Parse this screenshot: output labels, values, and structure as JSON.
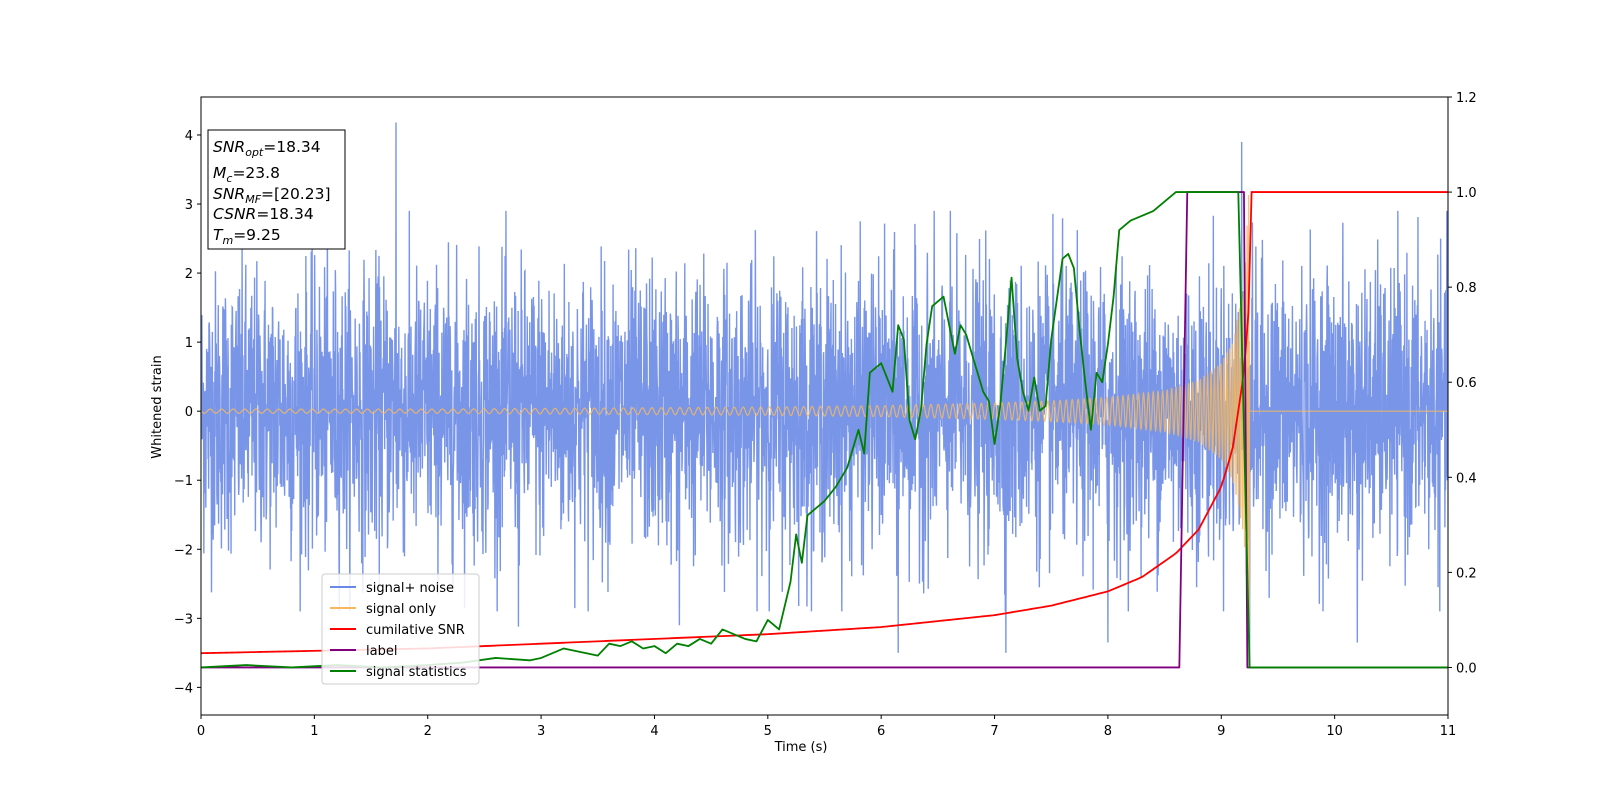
{
  "chart_data": {
    "type": "line",
    "xlabel": "Time (s)",
    "ylabel": "Whitened strain",
    "xlim": [
      0,
      11
    ],
    "ylim_left": [
      -4.4,
      4.55
    ],
    "ylim_right": [
      -0.1,
      1.2
    ],
    "x_ticks": [
      "0",
      "1",
      "2",
      "3",
      "4",
      "5",
      "6",
      "7",
      "8",
      "9",
      "10",
      "11"
    ],
    "y_left_ticks": [
      "4",
      "3",
      "2",
      "1",
      "0",
      "−1",
      "−2",
      "−3",
      "−4"
    ],
    "y_right_ticks": [
      "1.2",
      "1.0",
      "0.8",
      "0.6",
      "0.4",
      "0.2",
      "0.0"
    ],
    "annotation": [
      {
        "base": "SNR",
        "sub": "opt",
        "rest": "=18.34"
      },
      {
        "base": "M",
        "sub": "c",
        "rest": "=23.8"
      },
      {
        "base": "SNR",
        "sub": "MF",
        "rest": "=[20.23]"
      },
      {
        "base": "CSNR",
        "sub": "",
        "rest": "=18.34"
      },
      {
        "base": "T",
        "sub": "m",
        "rest": "=9.25"
      }
    ],
    "legend_position": "lower-left",
    "series": [
      {
        "name": "signal+ noise",
        "axis": "left",
        "color": "#6a89e6",
        "description_values": {
          "std": 1.0,
          "peaks": [
            [
              1.72,
              4.18
            ],
            [
              9.18,
              3.9
            ],
            [
              9.25,
              -3.7
            ],
            [
              6.15,
              -3.5
            ],
            [
              7.1,
              -3.5
            ],
            [
              10.2,
              -3.35
            ],
            [
              8.0,
              -3.35
            ],
            [
              4.22,
              -3.1
            ],
            [
              2.8,
              -3.12
            ]
          ]
        }
      },
      {
        "name": "signal only",
        "axis": "left",
        "color": "#f5b860",
        "x": [
          0,
          2,
          4,
          5,
          6,
          7,
          7.5,
          8,
          8.5,
          8.8,
          9.0,
          9.1,
          9.2,
          9.25,
          9.26,
          11
        ],
        "envelope": [
          0.03,
          0.03,
          0.05,
          0.06,
          0.08,
          0.12,
          0.15,
          0.2,
          0.3,
          0.45,
          0.7,
          1.0,
          1.8,
          3.5,
          0,
          0
        ]
      },
      {
        "name": "cumilative SNR",
        "axis": "right",
        "color": "#ff0000",
        "x": [
          0,
          1,
          2,
          3,
          4,
          5,
          6,
          7,
          7.5,
          8,
          8.3,
          8.6,
          8.8,
          9.0,
          9.1,
          9.2,
          9.25,
          9.26,
          11
        ],
        "y": [
          0.03,
          0.035,
          0.04,
          0.05,
          0.06,
          0.07,
          0.085,
          0.11,
          0.13,
          0.16,
          0.19,
          0.24,
          0.29,
          0.38,
          0.46,
          0.62,
          0.78,
          1.0,
          1.0
        ]
      },
      {
        "name": "label",
        "axis": "right",
        "color": "#800080",
        "x": [
          0,
          8.63,
          8.7,
          9.2,
          9.23,
          11
        ],
        "y": [
          0,
          0,
          1,
          1,
          0,
          0
        ]
      },
      {
        "name": "signal statistics",
        "axis": "right",
        "color": "#008000",
        "x": [
          0,
          0.4,
          0.8,
          1.2,
          1.6,
          2.0,
          2.3,
          2.6,
          2.9,
          3.0,
          3.2,
          3.4,
          3.5,
          3.6,
          3.7,
          3.8,
          3.9,
          4.0,
          4.1,
          4.2,
          4.3,
          4.4,
          4.5,
          4.6,
          4.7,
          4.8,
          4.9,
          5.0,
          5.1,
          5.2,
          5.25,
          5.3,
          5.35,
          5.4,
          5.5,
          5.6,
          5.7,
          5.8,
          5.85,
          5.9,
          6.0,
          6.1,
          6.15,
          6.2,
          6.25,
          6.3,
          6.35,
          6.4,
          6.45,
          6.55,
          6.6,
          6.65,
          6.7,
          6.75,
          6.8,
          6.85,
          6.9,
          6.95,
          7.0,
          7.05,
          7.1,
          7.15,
          7.2,
          7.25,
          7.3,
          7.35,
          7.4,
          7.45,
          7.5,
          7.6,
          7.65,
          7.7,
          7.75,
          7.8,
          7.85,
          7.9,
          7.95,
          8.0,
          8.05,
          8.1,
          8.2,
          8.3,
          8.4,
          8.5,
          8.6,
          8.7,
          8.8,
          8.9,
          9.0,
          9.1,
          9.15,
          9.2,
          9.25,
          9.3,
          9.35,
          11
        ],
        "y": [
          0.0,
          0.005,
          0.0,
          0.005,
          0.0,
          0.005,
          0.01,
          0.02,
          0.015,
          0.02,
          0.04,
          0.03,
          0.025,
          0.05,
          0.045,
          0.055,
          0.04,
          0.045,
          0.03,
          0.05,
          0.045,
          0.06,
          0.05,
          0.08,
          0.07,
          0.06,
          0.055,
          0.1,
          0.08,
          0.18,
          0.28,
          0.22,
          0.32,
          0.33,
          0.35,
          0.38,
          0.42,
          0.5,
          0.45,
          0.62,
          0.64,
          0.58,
          0.72,
          0.69,
          0.52,
          0.48,
          0.54,
          0.68,
          0.76,
          0.78,
          0.72,
          0.66,
          0.72,
          0.7,
          0.66,
          0.62,
          0.58,
          0.56,
          0.47,
          0.55,
          0.68,
          0.82,
          0.65,
          0.58,
          0.54,
          0.61,
          0.54,
          0.55,
          0.69,
          0.86,
          0.87,
          0.84,
          0.71,
          0.6,
          0.5,
          0.62,
          0.6,
          0.68,
          0.78,
          0.92,
          0.94,
          0.95,
          0.96,
          0.98,
          1.0,
          1.0,
          1.0,
          1.0,
          1.0,
          1.0,
          1.0,
          0.5,
          0.0,
          0.0,
          0.0,
          0.0
        ]
      }
    ]
  }
}
